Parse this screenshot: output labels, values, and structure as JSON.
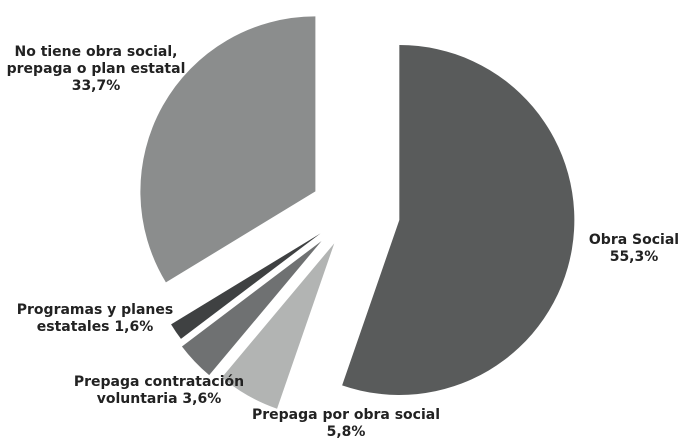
{
  "chart_data": {
    "type": "pie",
    "slices": [
      {
        "label_lines": [
          "Obra Social",
          "55,3%"
        ],
        "value": 55.3,
        "color": "#595b5b"
      },
      {
        "label_lines": [
          "Prepaga por obra social",
          "5,8%"
        ],
        "value": 5.8,
        "color": "#b2b4b3"
      },
      {
        "label_lines": [
          "Prepaga contratación",
          "voluntaria 3,6%"
        ],
        "value": 3.6,
        "color": "#6f7172"
      },
      {
        "label_lines": [
          "Programas y planes",
          "estatales 1,6%"
        ],
        "value": 1.6,
        "color": "#3f4142"
      },
      {
        "label_lines": [
          "No tiene obra social,",
          "prepaga o plan estatal",
          "33,7%"
        ],
        "value": 33.7,
        "color": "#8b8d8d"
      }
    ],
    "start_angle": "12 o'clock",
    "direction": "clockwise",
    "exploded": true
  }
}
